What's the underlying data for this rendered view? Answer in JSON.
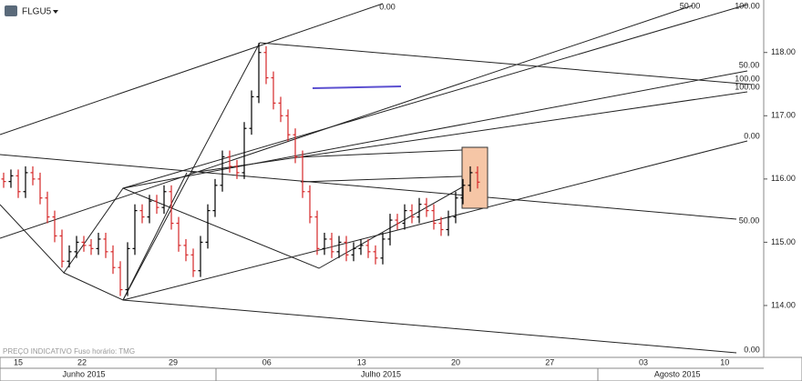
{
  "chart_data": {
    "type": "ohlc",
    "symbol": "FLGU5",
    "footnote": "PREÇO INDICATIVO   Fuso horário: TMG",
    "up_color": "#000000",
    "down_color": "#d62728",
    "x": [
      0.5,
      1.5,
      2.5,
      3.5,
      4.5,
      5.5,
      6.5,
      7.5,
      8.5,
      9.5,
      10.5,
      11.5,
      12.5,
      13.5,
      14.5,
      15.5,
      16.5,
      17.5,
      18.5,
      19.5,
      20.5,
      21.5,
      22.5,
      23.5,
      24.5,
      25.5,
      26.5,
      27.5,
      28.5,
      29.5,
      30.5,
      31.5,
      32.5,
      33.5,
      34.5,
      35.5,
      36.5,
      37.5,
      38.5,
      39.5,
      40.5,
      41.5,
      42.5,
      43.5,
      44.5,
      45.5,
      46.5,
      47.5,
      48.5,
      49.5,
      50.5,
      51.5,
      52.5,
      53.5,
      54.5,
      55.5,
      56.5,
      57.5,
      58.5,
      59.5,
      60.5,
      61.5,
      62.5,
      63.5,
      64.5,
      65.5
    ],
    "open": [
      116.0,
      115.96,
      116.05,
      115.8,
      116.1,
      116.0,
      115.7,
      115.4,
      115.1,
      114.7,
      114.85,
      115.0,
      114.95,
      114.9,
      115.05,
      114.85,
      114.6,
      114.25,
      114.9,
      115.5,
      115.4,
      115.65,
      115.55,
      115.8,
      115.3,
      114.95,
      114.8,
      114.55,
      115.0,
      115.5,
      115.9,
      116.35,
      116.2,
      116.1,
      116.8,
      117.3,
      118.0,
      117.6,
      117.2,
      117.0,
      116.7,
      116.35,
      115.8,
      115.4,
      114.9,
      115.05,
      114.85,
      115.0,
      114.8,
      114.9,
      114.95,
      114.85,
      114.75,
      115.05,
      115.35,
      115.3,
      115.5,
      115.4,
      115.6,
      115.5,
      115.3,
      115.2,
      115.4,
      115.7,
      115.9,
      116.1
    ],
    "high": [
      116.1,
      116.15,
      116.15,
      116.2,
      116.2,
      116.1,
      115.8,
      115.5,
      115.2,
      114.95,
      115.1,
      115.1,
      115.05,
      115.15,
      115.15,
      114.95,
      114.7,
      115.0,
      115.6,
      115.6,
      115.75,
      115.75,
      115.9,
      115.9,
      115.4,
      115.05,
      114.9,
      115.1,
      115.6,
      116.0,
      116.45,
      116.45,
      116.3,
      116.9,
      117.4,
      118.15,
      118.1,
      117.7,
      117.3,
      117.1,
      116.8,
      116.45,
      115.9,
      115.5,
      115.15,
      115.15,
      115.1,
      115.1,
      115.0,
      115.05,
      115.05,
      114.95,
      115.15,
      115.45,
      115.45,
      115.6,
      115.6,
      115.7,
      115.7,
      115.6,
      115.4,
      115.5,
      115.8,
      116.0,
      116.2,
      116.2
    ],
    "low": [
      115.86,
      115.86,
      115.7,
      115.7,
      115.9,
      115.6,
      115.3,
      115.0,
      114.6,
      114.6,
      114.75,
      114.85,
      114.8,
      114.8,
      114.75,
      114.5,
      114.15,
      114.15,
      114.8,
      115.3,
      115.3,
      115.45,
      115.45,
      115.2,
      114.85,
      114.7,
      114.45,
      114.45,
      114.9,
      115.4,
      115.8,
      116.1,
      116.0,
      116.0,
      116.7,
      117.2,
      117.5,
      117.1,
      116.9,
      116.6,
      116.25,
      115.7,
      115.3,
      114.8,
      114.8,
      114.75,
      114.75,
      114.7,
      114.7,
      114.8,
      114.75,
      114.65,
      114.65,
      114.95,
      115.2,
      115.2,
      115.3,
      115.3,
      115.4,
      115.2,
      115.1,
      115.1,
      115.3,
      115.6,
      115.8,
      115.85
    ],
    "close": [
      115.96,
      116.05,
      115.8,
      116.1,
      116.0,
      115.7,
      115.4,
      115.1,
      114.7,
      114.85,
      115.0,
      114.95,
      114.9,
      115.05,
      114.85,
      114.6,
      114.25,
      114.9,
      115.5,
      115.4,
      115.65,
      115.55,
      115.8,
      115.3,
      114.95,
      114.8,
      114.55,
      115.0,
      115.5,
      115.9,
      116.35,
      116.2,
      116.1,
      116.8,
      117.3,
      118.0,
      117.6,
      117.2,
      117.0,
      116.7,
      116.35,
      115.8,
      115.4,
      114.9,
      115.05,
      114.85,
      115.0,
      114.8,
      114.9,
      114.95,
      114.85,
      114.75,
      115.05,
      115.35,
      115.3,
      115.5,
      115.4,
      115.6,
      115.5,
      115.3,
      115.2,
      115.4,
      115.7,
      115.9,
      116.1,
      115.95
    ],
    "ylim": [
      113.18,
      118.83
    ],
    "yticks": [
      {
        "value": 114,
        "label": "114.00"
      },
      {
        "value": 115,
        "label": "115.00"
      },
      {
        "value": 116,
        "label": "116.00"
      },
      {
        "value": 117,
        "label": "117.00"
      },
      {
        "value": 118,
        "label": "118.00"
      }
    ],
    "xlim": [
      0,
      104.75
    ],
    "xticks": [
      {
        "value": 2.5,
        "label": "15"
      },
      {
        "value": 11.25,
        "label": "22"
      },
      {
        "value": 23.75,
        "label": "29"
      },
      {
        "value": 36.6,
        "label": "06"
      },
      {
        "value": 49.6,
        "label": "13"
      },
      {
        "value": 62.5,
        "label": "20"
      },
      {
        "value": 75.4,
        "label": "27"
      },
      {
        "value": 88.25,
        "label": "03"
      },
      {
        "value": 99.4,
        "label": "10"
      }
    ],
    "month_ticks": [
      {
        "value": 11.5,
        "label": "Junho 2015"
      },
      {
        "value": 52.25,
        "label": "Julho 2015"
      },
      {
        "value": 92.9,
        "label": "Agosto 2015"
      }
    ],
    "grid": false,
    "drawing_labels": [
      "0.00",
      "50.00",
      "100.00",
      "50.00",
      "100.00",
      "100.00",
      "0.00",
      "50.00",
      "0.00"
    ]
  }
}
